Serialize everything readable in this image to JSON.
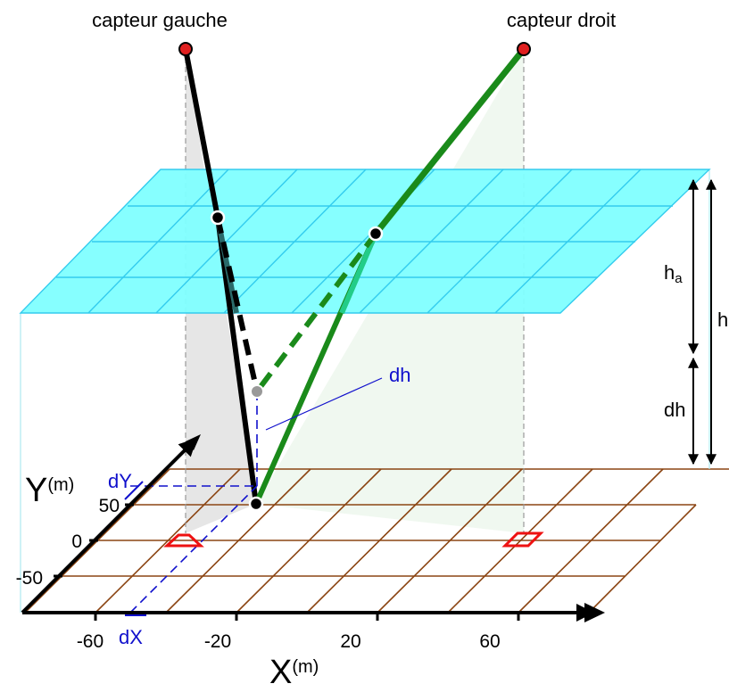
{
  "labels": {
    "sensor_left": "capteur gauche",
    "sensor_right": "capteur droit",
    "ha_main": "h",
    "ha_sub": "a",
    "h": "h",
    "dh_right": "dh",
    "dh_center": "dh",
    "dY": "dY",
    "dX": "dX"
  },
  "axes": {
    "x_title": "X",
    "x_unit": "(m)",
    "y_title": "Y",
    "y_unit": "(m)",
    "x_ticks": [
      "-60",
      "-20",
      "20",
      "60"
    ],
    "y_ticks": [
      "50",
      "0",
      "-50"
    ]
  },
  "colors": {
    "plane_fill": "#80ffff",
    "plane_grid": "#33ccee",
    "ground_grid": "#8b4513",
    "left_ray": "#000000",
    "right_ray": "#1a8a1a",
    "right_ray_light": "#22cc88",
    "sensor_fill": "#e02020",
    "footprint": "#ee1111",
    "annotation": "#1010cc",
    "shadow_left": "#e6e6e6",
    "shadow_right": "#eef7ee",
    "ghost_point": "#999999"
  }
}
